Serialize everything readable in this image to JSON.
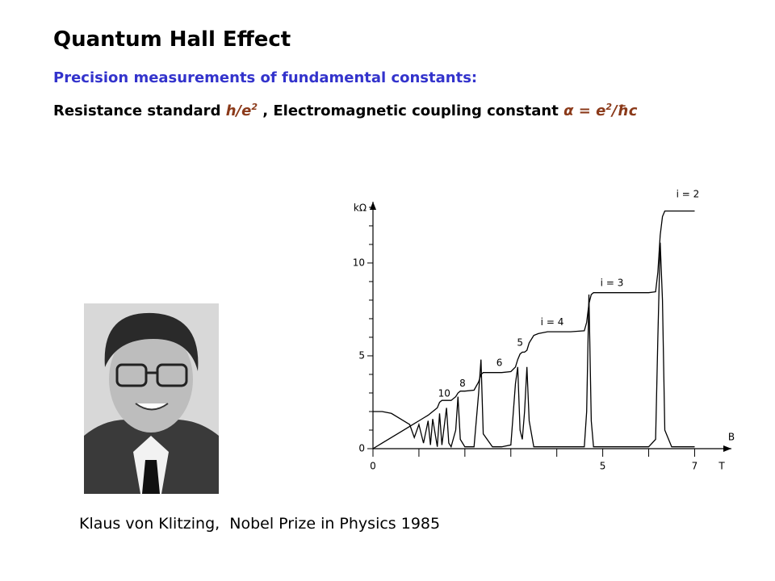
{
  "header": {
    "title": "Quantum Hall Effect",
    "subtitle": "Precision measurements of fundamental constants:",
    "line_parts": [
      "Resistance standard ",
      "h/e",
      "2",
      " , Electromagnetic coupling constant ",
      "α = e",
      "2",
      "/ħc"
    ]
  },
  "caption": "Klaus von Klitzing,  Nobel Prize in Physics 1985",
  "chart_data": {
    "type": "line",
    "y_unit": "kΩ",
    "x_label": "B",
    "x_unit": "T",
    "xlim": [
      0,
      7.8
    ],
    "ylim": [
      0,
      13.3
    ],
    "xticks": [
      0,
      5,
      7
    ],
    "xminor": [
      1,
      2,
      3,
      4,
      6
    ],
    "yticks": [
      0,
      5,
      10
    ],
    "yminor": [
      1,
      2,
      3,
      4,
      6,
      7,
      8,
      9,
      11,
      12,
      13
    ],
    "x": [
      0,
      0.2,
      0.4,
      0.6,
      0.8,
      0.9,
      1.0,
      1.1,
      1.2,
      1.25,
      1.3,
      1.4,
      1.45,
      1.5,
      1.6,
      1.65,
      1.7,
      1.8,
      1.85,
      1.9,
      2.0,
      2.2,
      2.3,
      2.35,
      2.4,
      2.6,
      2.8,
      3.0,
      3.1,
      3.15,
      3.2,
      3.25,
      3.3,
      3.35,
      3.4,
      3.5,
      3.6,
      3.8,
      4.0,
      4.3,
      4.6,
      4.65,
      4.7,
      4.75,
      4.8,
      5.0,
      5.5,
      6.0,
      6.15,
      6.2,
      6.25,
      6.3,
      6.35,
      6.5,
      7.0
    ],
    "series": [
      {
        "color": "#000000",
        "values": [
          0,
          0.3,
          0.6,
          0.9,
          1.2,
          1.35,
          1.5,
          1.65,
          1.8,
          1.9,
          2.0,
          2.2,
          2.5,
          2.6,
          2.6,
          2.6,
          2.6,
          2.8,
          3.0,
          3.1,
          3.1,
          3.15,
          3.6,
          4.0,
          4.1,
          4.1,
          4.1,
          4.15,
          4.4,
          4.8,
          5.1,
          5.2,
          5.2,
          5.3,
          5.7,
          6.1,
          6.2,
          6.3,
          6.3,
          6.3,
          6.35,
          6.8,
          7.8,
          8.3,
          8.4,
          8.4,
          8.4,
          8.4,
          8.45,
          9.5,
          11.5,
          12.5,
          12.8,
          12.8,
          12.8
        ]
      },
      {
        "color": "#000000",
        "values": [
          2.0,
          2.0,
          1.9,
          1.6,
          1.3,
          0.6,
          1.3,
          0.3,
          1.5,
          0.2,
          1.6,
          0.1,
          1.9,
          0.2,
          2.2,
          0.3,
          0.1,
          1.0,
          2.8,
          0.5,
          0.1,
          0.1,
          3.0,
          4.8,
          0.8,
          0.1,
          0.1,
          0.2,
          3.5,
          4.4,
          1.0,
          0.5,
          2.0,
          4.4,
          1.5,
          0.1,
          0.1,
          0.1,
          0.1,
          0.1,
          0.1,
          2.0,
          8.3,
          1.5,
          0.1,
          0.1,
          0.1,
          0.1,
          0.5,
          6.0,
          11.1,
          8,
          1,
          0.1,
          0.1
        ]
      }
    ],
    "annotations": [
      "i = 2",
      "i = 3",
      "i = 4",
      "5",
      "6",
      "8",
      "10"
    ]
  }
}
